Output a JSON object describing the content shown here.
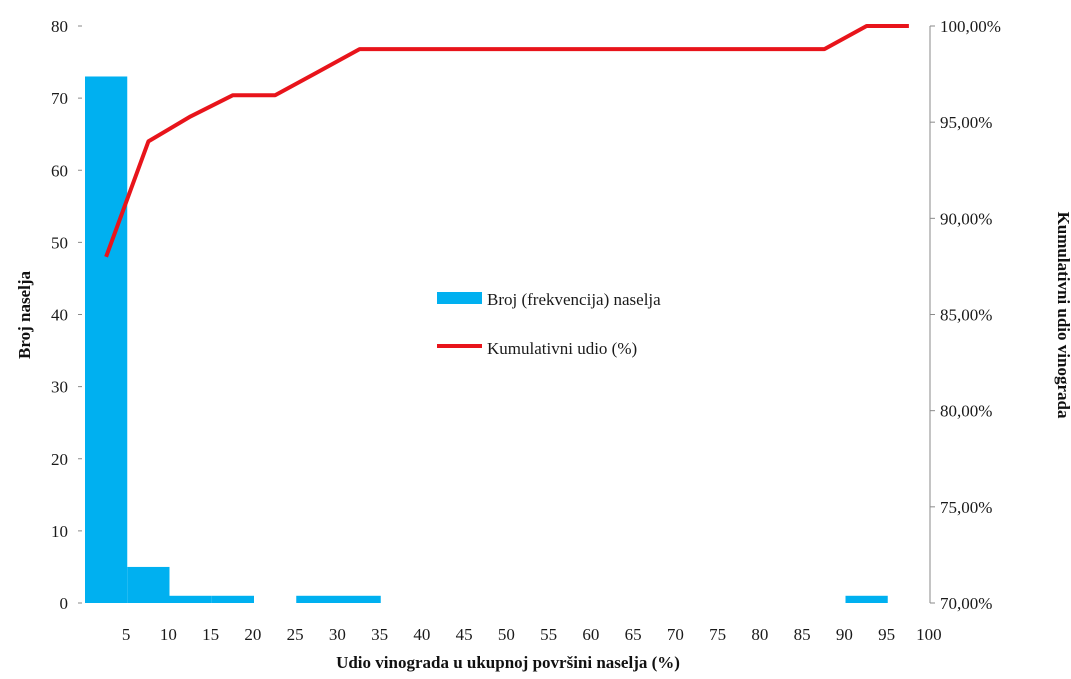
{
  "chart_data": {
    "type": "bar",
    "categories": [
      "5",
      "10",
      "15",
      "20",
      "25",
      "30",
      "35",
      "40",
      "45",
      "50",
      "55",
      "60",
      "65",
      "70",
      "75",
      "80",
      "85",
      "90",
      "95",
      "100"
    ],
    "series": [
      {
        "name": "Broj (frekvencija) naselja",
        "type": "bar",
        "axis": "left",
        "color": "#00b0f0",
        "values": [
          73,
          5,
          1,
          1,
          0,
          1,
          1,
          0,
          0,
          0,
          0,
          0,
          0,
          0,
          0,
          0,
          0,
          0,
          1,
          0
        ]
      },
      {
        "name": "Kumulativni udio (%)",
        "type": "line",
        "axis": "right",
        "color": "#e8141b",
        "values": [
          88.0,
          94.0,
          95.3,
          96.4,
          96.4,
          97.6,
          98.8,
          98.8,
          98.8,
          98.8,
          98.8,
          98.8,
          98.8,
          98.8,
          98.8,
          98.8,
          98.8,
          98.8,
          100.0,
          100.0
        ]
      }
    ],
    "xlabel": "Udio vinograda u ukupnoj površini naselja (%)",
    "ylabel": "Broj naselja",
    "y2label": "Kumulativni udio vinograda",
    "ylim": [
      0,
      80
    ],
    "y2lim": [
      70,
      100
    ],
    "yticks": [
      "0",
      "10",
      "20",
      "30",
      "40",
      "50",
      "60",
      "70",
      "80"
    ],
    "y2ticks": [
      "70,00%",
      "75,00%",
      "80,00%",
      "85,00%",
      "90,00%",
      "95,00%",
      "100,00%"
    ],
    "grid": false,
    "legend_position": "center"
  }
}
